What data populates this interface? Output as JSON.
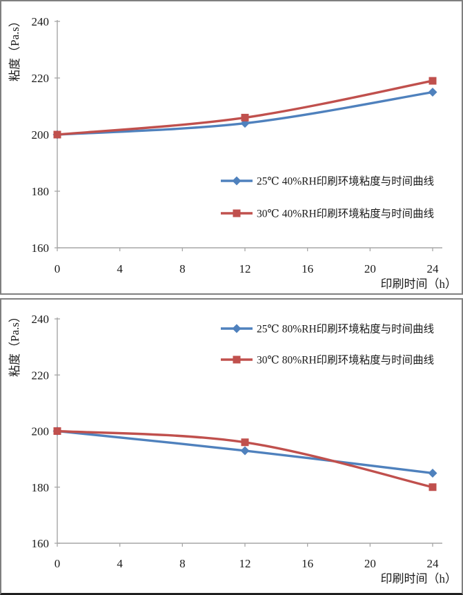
{
  "colors": {
    "series_blue": "#4F81BD",
    "series_red": "#C0504D",
    "axis_line": "#A6A6A6",
    "tick_text": "#1a1a1a",
    "panel_border": "#7f7f7f",
    "bottom_edge": "#1f1f1f"
  },
  "chart_data": [
    {
      "type": "line",
      "x": [
        0,
        12,
        24
      ],
      "x_ticks": [
        0,
        4,
        8,
        12,
        16,
        20,
        24
      ],
      "y_ticks": [
        160,
        180,
        200,
        220,
        240
      ],
      "xlim": [
        0,
        24
      ],
      "ylim": [
        160,
        240
      ],
      "xlabel": "印刷时间（h）",
      "ylabel": "粘度（Pa.s）",
      "grid": false,
      "legend_position": "middle-right-inside",
      "series": [
        {
          "name": "25℃ 40%RH印刷环境粘度与时间曲线",
          "marker": "diamond",
          "color": "#4F81BD",
          "values": [
            200,
            204,
            215
          ]
        },
        {
          "name": "30℃ 40%RH印刷环境粘度与时间曲线",
          "marker": "square",
          "color": "#C0504D",
          "values": [
            200,
            206,
            219
          ]
        }
      ]
    },
    {
      "type": "line",
      "x": [
        0,
        12,
        24
      ],
      "x_ticks": [
        0,
        4,
        8,
        12,
        16,
        20,
        24
      ],
      "y_ticks": [
        160,
        180,
        200,
        220,
        240
      ],
      "xlim": [
        0,
        24
      ],
      "ylim": [
        160,
        240
      ],
      "xlabel": "印刷时间（h）",
      "ylabel": "粘度（Pa.s）",
      "grid": false,
      "legend_position": "top-right-inside",
      "series": [
        {
          "name": "25℃ 80%RH印刷环境粘度与时间曲线",
          "marker": "diamond",
          "color": "#4F81BD",
          "values": [
            200,
            193,
            185
          ]
        },
        {
          "name": "30℃ 80%RH印刷环境粘度与时间曲线",
          "marker": "square",
          "color": "#C0504D",
          "values": [
            200,
            196,
            180
          ]
        }
      ]
    }
  ]
}
